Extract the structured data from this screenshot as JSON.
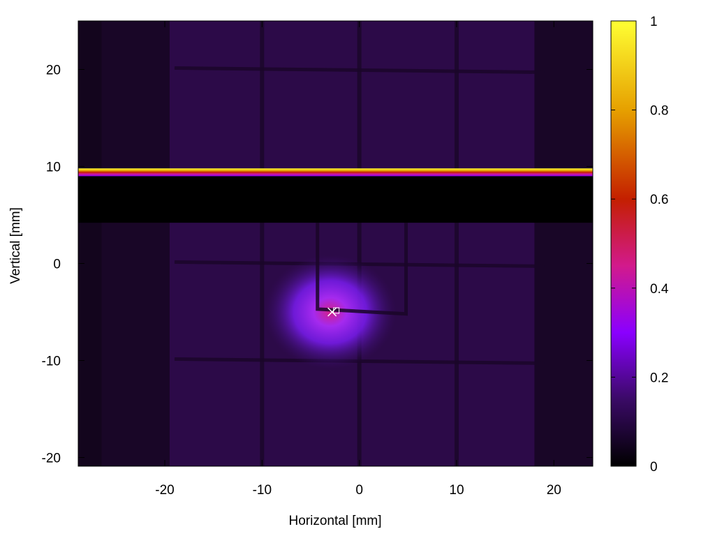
{
  "chart_data": {
    "type": "heatmap",
    "title": "",
    "xlabel": "Horizontal [mm]",
    "ylabel": "Vertical [mm]",
    "xlim": [
      -28.9,
      24
    ],
    "ylim": [
      -20.9,
      25
    ],
    "x_ticks": [
      -20,
      -10,
      0,
      10,
      20
    ],
    "y_ticks": [
      -20,
      -10,
      0,
      10,
      20
    ],
    "colorbar": {
      "range": [
        0,
        1
      ],
      "ticks": [
        0,
        0.2,
        0.4,
        0.6,
        0.8,
        1
      ],
      "tick_labels": [
        "0",
        "0.2",
        "0.4",
        "0.6",
        "0.8",
        "1"
      ],
      "palette": [
        "#000000",
        "#3a0a66",
        "#8a00ff",
        "#d21a8c",
        "#c41f00",
        "#e6a000",
        "#ffff33"
      ]
    },
    "features": {
      "background_level": 0.05,
      "dark_band_y": [
        4.2,
        9.0
      ],
      "bright_edge_y": [
        9.0,
        9.8
      ],
      "bright_edge_max": 1.0,
      "hot_spot_center": [
        -3.0,
        -5.0
      ],
      "hot_spot_peak": 0.42,
      "grid_lines_x": [
        -10,
        0,
        10
      ],
      "grid_lines_y": [
        20,
        0,
        -10
      ],
      "marker_position": [
        -2.8,
        -5.0
      ]
    }
  }
}
